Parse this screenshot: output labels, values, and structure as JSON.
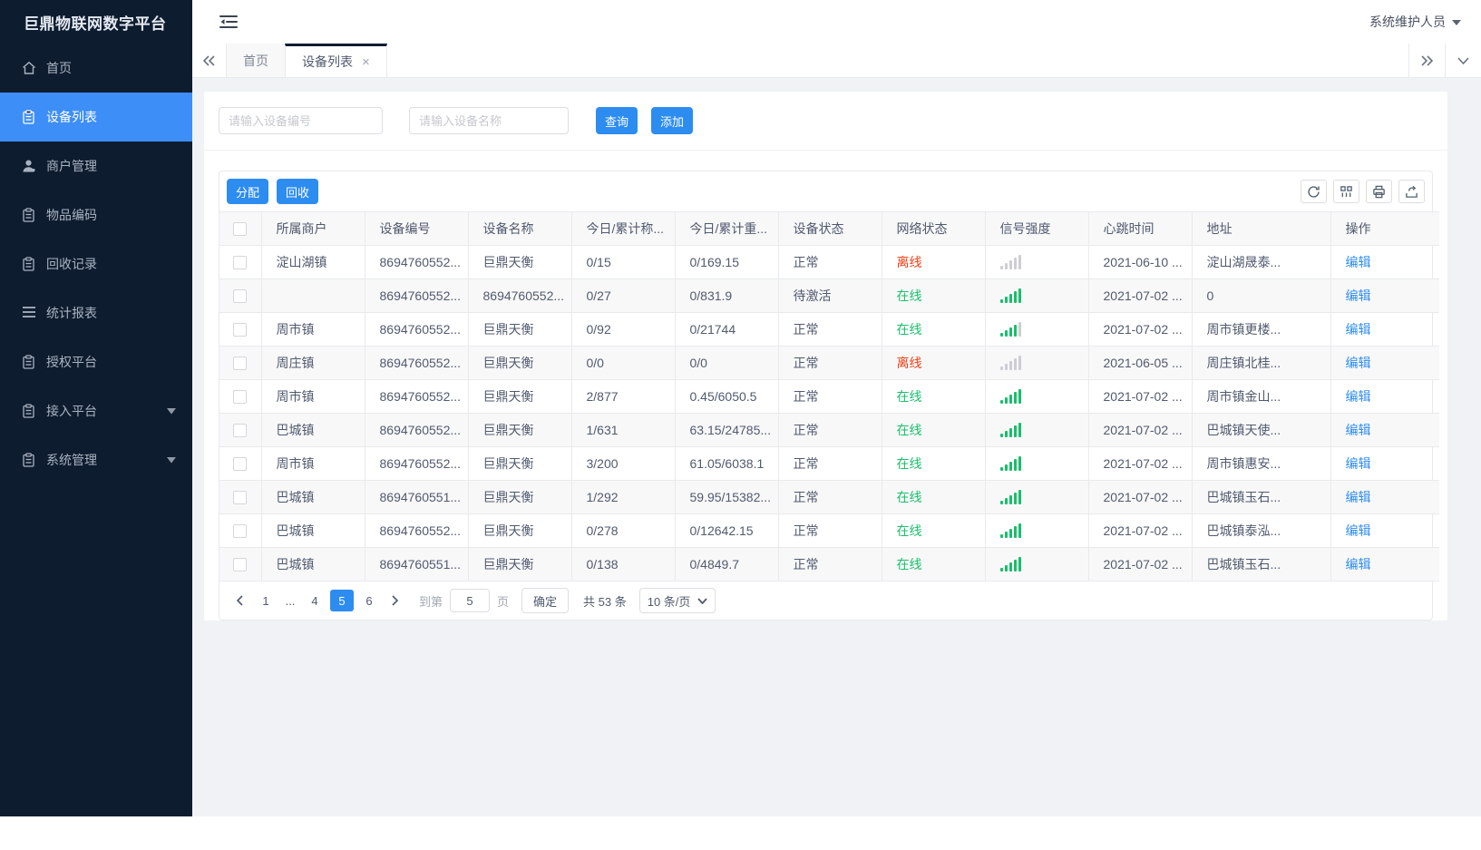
{
  "app": {
    "title": "巨鼎物联网数字平台",
    "user_name": "系统维护人员"
  },
  "sidebar": {
    "items": [
      {
        "icon": "home-icon",
        "label": "首页"
      },
      {
        "icon": "device-list-icon",
        "label": "设备列表",
        "active": true
      },
      {
        "icon": "merchant-icon",
        "label": "商户管理"
      },
      {
        "icon": "item-code-icon",
        "label": "物品编码"
      },
      {
        "icon": "recycle-record-icon",
        "label": "回收记录"
      },
      {
        "icon": "report-icon",
        "label": "统计报表"
      },
      {
        "icon": "auth-platform-icon",
        "label": "授权平台"
      },
      {
        "icon": "access-platform-icon",
        "label": "接入平台",
        "caret": true
      },
      {
        "icon": "system-icon",
        "label": "系统管理",
        "caret": true
      }
    ]
  },
  "tabs": {
    "items": [
      {
        "label": "首页"
      },
      {
        "label": "设备列表",
        "active": true,
        "closable": true
      }
    ]
  },
  "search": {
    "device_no_placeholder": "请输入设备编号",
    "device_name_placeholder": "请输入设备名称",
    "query_label": "查询",
    "add_label": "添加"
  },
  "toolbar": {
    "assign_label": "分配",
    "recycle_label": "回收"
  },
  "table": {
    "columns": [
      "所属商户",
      "设备编号",
      "设备名称",
      "今日/累计称...",
      "今日/累计重...",
      "设备状态",
      "网络状态",
      "信号强度",
      "心跳时间",
      "地址",
      "操作"
    ],
    "edit_label": "编辑",
    "rows": [
      {
        "merchant": "淀山湖镇",
        "device_no": "8694760552...",
        "device_name": "巨鼎天衡",
        "today_count": "0/15",
        "today_weight": "0/169.15",
        "device_status": "正常",
        "network_status": "离线",
        "online": false,
        "signal": 0,
        "heartbeat": "2021-06-10 ...",
        "address": "淀山湖晟泰..."
      },
      {
        "merchant": "",
        "device_no": "8694760552...",
        "device_name": "8694760552...",
        "today_count": "0/27",
        "today_weight": "0/831.9",
        "device_status": "待激活",
        "network_status": "在线",
        "online": true,
        "signal": 5,
        "heartbeat": "2021-07-02 ...",
        "address": "0"
      },
      {
        "merchant": "周市镇",
        "device_no": "8694760552...",
        "device_name": "巨鼎天衡",
        "today_count": "0/92",
        "today_weight": "0/21744",
        "device_status": "正常",
        "network_status": "在线",
        "online": true,
        "signal": 4,
        "heartbeat": "2021-07-02 ...",
        "address": "周市镇更楼..."
      },
      {
        "merchant": "周庄镇",
        "device_no": "8694760552...",
        "device_name": "巨鼎天衡",
        "today_count": "0/0",
        "today_weight": "0/0",
        "device_status": "正常",
        "network_status": "离线",
        "online": false,
        "signal": 0,
        "heartbeat": "2021-06-05 ...",
        "address": "周庄镇北桂..."
      },
      {
        "merchant": "周市镇",
        "device_no": "8694760552...",
        "device_name": "巨鼎天衡",
        "today_count": "2/877",
        "today_weight": "0.45/6050.5",
        "device_status": "正常",
        "network_status": "在线",
        "online": true,
        "signal": 5,
        "heartbeat": "2021-07-02 ...",
        "address": "周市镇金山..."
      },
      {
        "merchant": "巴城镇",
        "device_no": "8694760552...",
        "device_name": "巨鼎天衡",
        "today_count": "1/631",
        "today_weight": "63.15/24785...",
        "device_status": "正常",
        "network_status": "在线",
        "online": true,
        "signal": 5,
        "heartbeat": "2021-07-02 ...",
        "address": "巴城镇天使..."
      },
      {
        "merchant": "周市镇",
        "device_no": "8694760552...",
        "device_name": "巨鼎天衡",
        "today_count": "3/200",
        "today_weight": "61.05/6038.1",
        "device_status": "正常",
        "network_status": "在线",
        "online": true,
        "signal": 5,
        "heartbeat": "2021-07-02 ...",
        "address": "周市镇惠安..."
      },
      {
        "merchant": "巴城镇",
        "device_no": "8694760551...",
        "device_name": "巨鼎天衡",
        "today_count": "1/292",
        "today_weight": "59.95/15382...",
        "device_status": "正常",
        "network_status": "在线",
        "online": true,
        "signal": 5,
        "heartbeat": "2021-07-02 ...",
        "address": "巴城镇玉石..."
      },
      {
        "merchant": "巴城镇",
        "device_no": "8694760552...",
        "device_name": "巨鼎天衡",
        "today_count": "0/278",
        "today_weight": "0/12642.15",
        "device_status": "正常",
        "network_status": "在线",
        "online": true,
        "signal": 5,
        "heartbeat": "2021-07-02 ...",
        "address": "巴城镇泰泓..."
      },
      {
        "merchant": "巴城镇",
        "device_no": "8694760551...",
        "device_name": "巨鼎天衡",
        "today_count": "0/138",
        "today_weight": "0/4849.7",
        "device_status": "正常",
        "network_status": "在线",
        "online": true,
        "signal": 5,
        "heartbeat": "2021-07-02 ...",
        "address": "巴城镇玉石..."
      }
    ]
  },
  "pagination": {
    "pages": [
      "1",
      "...",
      "4",
      "5",
      "6"
    ],
    "active_page": "5",
    "jump_label": "到第",
    "jump_value": "5",
    "page_unit": "页",
    "confirm_label": "确定",
    "total_label": "共 53 条",
    "page_size": "10 条/页"
  },
  "colors": {
    "primary": "#2d8cf0",
    "sidebar_active": "#3e8ef7",
    "online": "#19be6b",
    "offline": "#ed4014",
    "sidebar_bg": "#0e1c30"
  }
}
